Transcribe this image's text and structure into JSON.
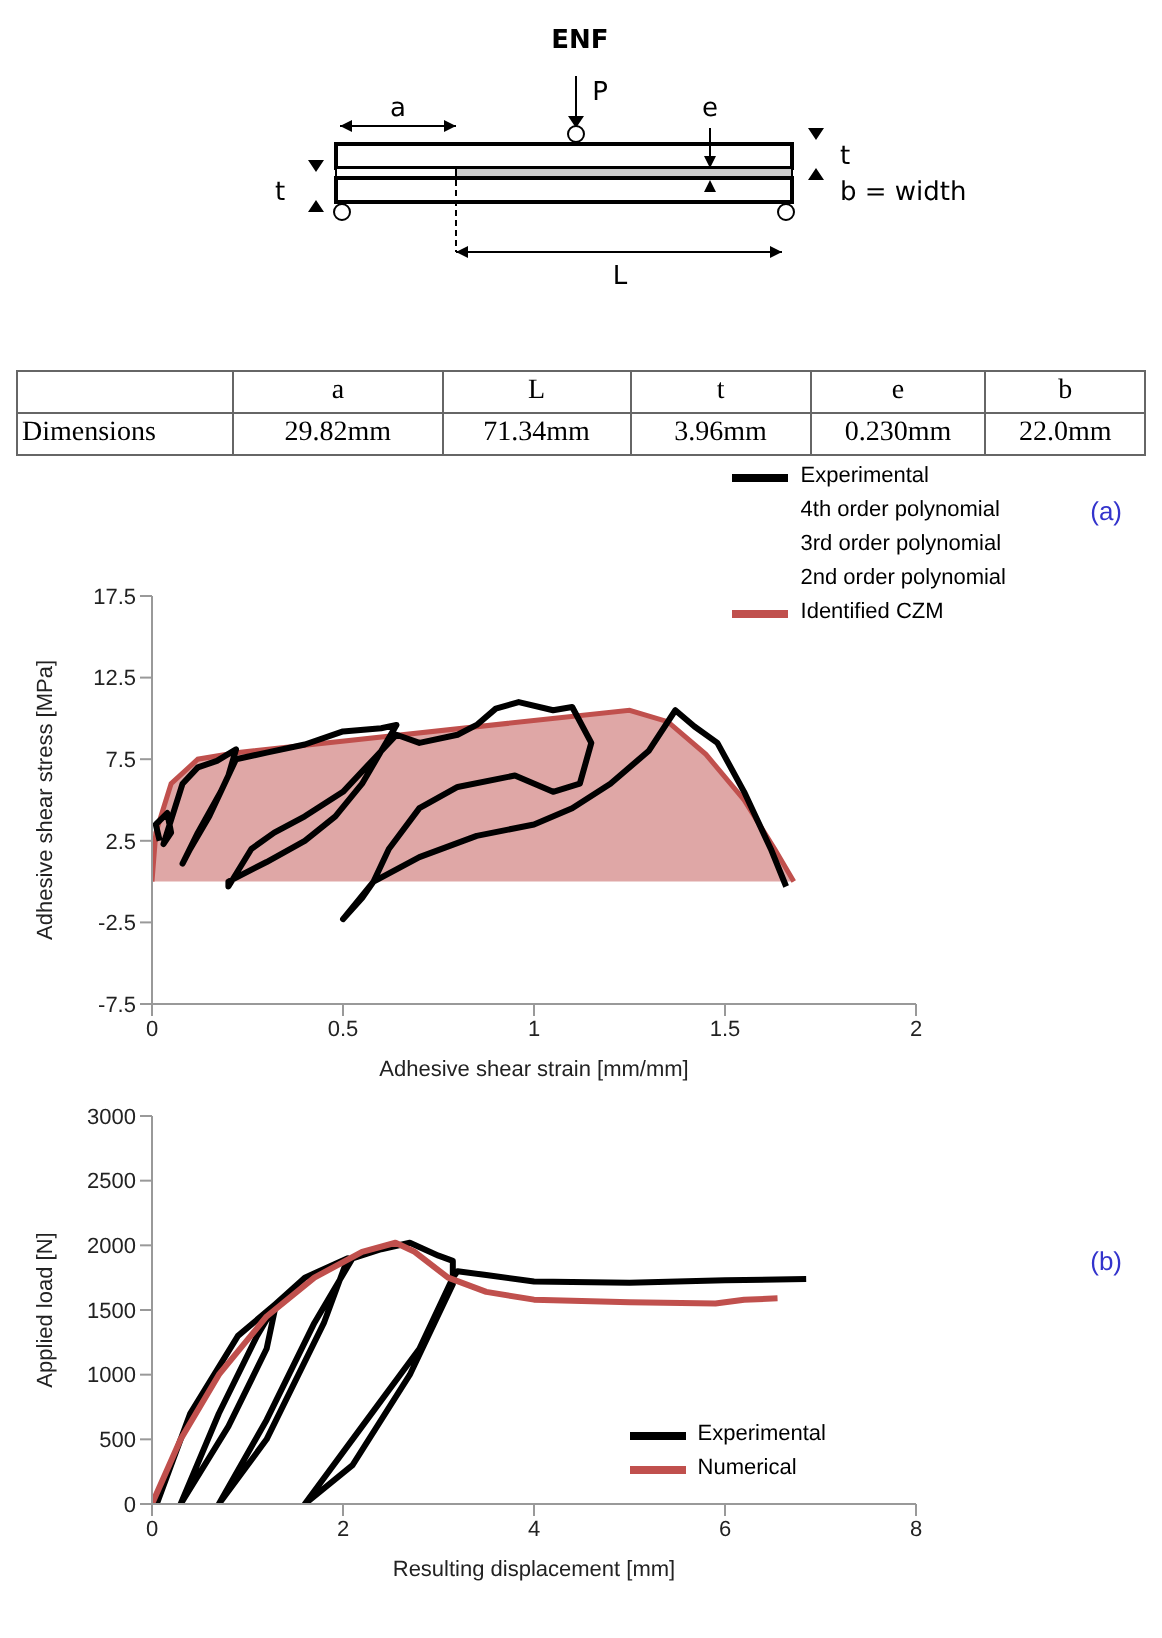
{
  "chart_data": [
    {
      "type": "other",
      "title": "ENF",
      "annotations": [
        "a",
        "P",
        "e",
        "t",
        "t",
        "b = width",
        "L",
        "a",
        "L",
        "t",
        "e",
        "b",
        "Dimensions",
        "29.82mm",
        "71.34mm",
        "3.96mm",
        "0.230mm",
        "22.0mm"
      ]
    },
    {
      "type": "line",
      "xlabel": "Adhesive shear strain [mm/mm]",
      "ylabel": "Adhesive shear stress [MPa]",
      "xlim": [
        0,
        2
      ],
      "xticks": [
        0,
        0.5,
        1,
        1.5,
        2
      ],
      "ylim": [
        -7.5,
        17.5
      ],
      "yticks": [
        -7.5,
        -2.5,
        2.5,
        7.5,
        12.5,
        17.5
      ],
      "grid": false,
      "legend": "top right",
      "annotations": [
        "(a)",
        "4th order polynomial",
        "3rd order polynomial",
        "2nd order polynomial"
      ],
      "series": [
        {
          "name": "Experimental",
          "color": "#000000",
          "x": [
            0.02,
            0.01,
            0.04,
            0.05,
            0.03,
            0.08,
            0.12,
            0.17,
            0.22,
            0.2,
            0.15,
            0.1,
            0.08,
            0.12,
            0.18,
            0.22,
            0.3,
            0.4,
            0.5,
            0.6,
            0.64,
            0.6,
            0.55,
            0.48,
            0.4,
            0.3,
            0.2,
            0.2,
            0.26,
            0.32,
            0.4,
            0.5,
            0.58,
            0.64,
            0.7,
            0.8,
            0.85,
            0.9,
            0.96,
            1.05,
            1.1,
            1.15,
            1.12,
            1.05,
            0.95,
            0.8,
            0.7,
            0.62,
            0.58,
            0.55,
            0.5,
            0.58,
            0.7,
            0.85,
            1.0,
            1.1,
            1.2,
            1.3,
            1.37,
            1.42,
            1.48,
            1.55,
            1.62,
            1.66
          ],
          "values": [
            2.5,
            3.5,
            4.2,
            3,
            2.3,
            6,
            7,
            7.4,
            8.1,
            6.5,
            4,
            2,
            1.1,
            3,
            5.5,
            7.5,
            7.9,
            8.4,
            9.2,
            9.4,
            9.6,
            8,
            6,
            4,
            2.5,
            1.2,
            0,
            -0.3,
            2,
            3,
            4,
            5.5,
            7.5,
            9,
            8.5,
            9,
            9.6,
            10.6,
            11,
            10.5,
            10.7,
            8.5,
            6,
            5.5,
            6.5,
            5.8,
            4.5,
            2,
            0,
            -1,
            -2.3,
            0,
            1.5,
            2.8,
            3.5,
            4.5,
            6,
            8,
            10.5,
            9.5,
            8.5,
            5.5,
            2,
            -0.3
          ]
        },
        {
          "name": "Identified CZM",
          "type": "area",
          "color": "#c0504d",
          "x": [
            0,
            0.01,
            0.05,
            0.12,
            0.22,
            1.25,
            1.35,
            1.45,
            1.55,
            1.63,
            1.68
          ],
          "values": [
            0,
            3,
            6,
            7.5,
            7.9,
            10.5,
            9.8,
            7.8,
            5,
            2,
            0
          ]
        }
      ]
    },
    {
      "type": "line",
      "xlabel": "Resulting displacement [mm]",
      "ylabel": "Applied load [N]",
      "xlim": [
        0,
        8
      ],
      "xticks": [
        0,
        2,
        4,
        6,
        8
      ],
      "ylim": [
        0,
        3000
      ],
      "yticks": [
        0,
        500,
        1000,
        1500,
        2000,
        2500,
        3000
      ],
      "grid": false,
      "legend": "bottom right",
      "annotations": [
        "(b)"
      ],
      "series": [
        {
          "name": "Experimental",
          "color": "#000000",
          "x": [
            0.05,
            0.4,
            0.9,
            1.3,
            1.2,
            0.8,
            0.3,
            0.7,
            1.1,
            1.3,
            1.6,
            2.05,
            1.8,
            1.2,
            0.7,
            1.2,
            1.7,
            2.1,
            2.4,
            2.7,
            3.0,
            3.15,
            3.15,
            2.7,
            2.1,
            1.6,
            2.2,
            2.8,
            3.15,
            3.2,
            3.5,
            4,
            5,
            6,
            6.85
          ],
          "values": [
            0,
            700,
            1300,
            1550,
            1200,
            600,
            0,
            700,
            1300,
            1550,
            1750,
            1900,
            1400,
            500,
            0,
            650,
            1400,
            1900,
            1970,
            2020,
            1920,
            1880,
            1700,
            1000,
            300,
            0,
            600,
            1200,
            1750,
            1800,
            1770,
            1720,
            1710,
            1730,
            1740
          ]
        },
        {
          "name": "Numerical",
          "color": "#c0504d",
          "x": [
            0,
            0.3,
            0.7,
            1.2,
            1.7,
            2.2,
            2.55,
            2.75,
            3.1,
            3.5,
            4,
            5,
            5.9,
            6.2,
            6.55
          ],
          "values": [
            0,
            500,
            1000,
            1450,
            1750,
            1950,
            2020,
            1950,
            1750,
            1640,
            1580,
            1560,
            1550,
            1580,
            1590
          ]
        }
      ]
    }
  ]
}
